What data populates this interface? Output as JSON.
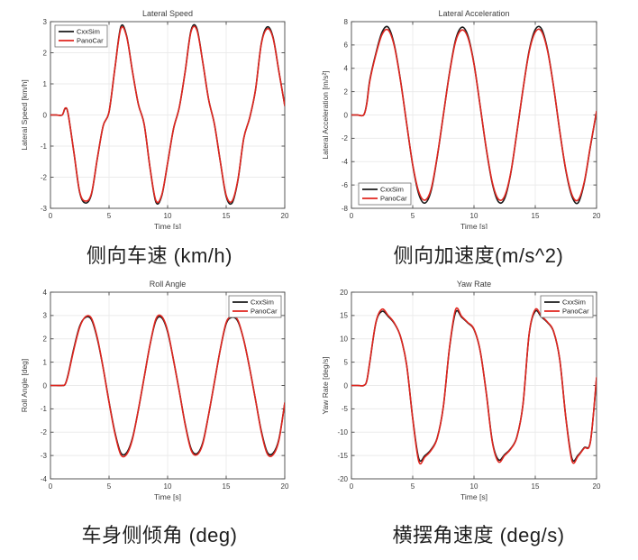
{
  "figure": {
    "background": "#ffffff",
    "legend_labels": [
      "CxxSim",
      "PanoCar"
    ],
    "colors": {
      "cxxsim": "#1a1a1a",
      "panocar": "#e0261f",
      "grid": "#ebebeb",
      "axis": "#4a4a4a",
      "text": "#3d3d3d",
      "legend_border": "#6f6f6f",
      "legend_bg": "#ffffff",
      "caption_text": "#1f1f1f"
    }
  },
  "chart_data": [
    {
      "type": "line",
      "title": "Lateral Speed",
      "xlabel": "Time [s]",
      "ylabel": "Lateral Speed [km/h]",
      "caption": "侧向车速 (km/h)",
      "xlim": [
        0,
        20
      ],
      "ylim": [
        -3,
        3
      ],
      "xticks": [
        0,
        5,
        10,
        15,
        20
      ],
      "yticks": [
        -3,
        -2,
        -1,
        0,
        1,
        2,
        3
      ],
      "grid": true,
      "legend_pos": "top-left",
      "x": [
        0,
        0.5,
        1,
        1.25,
        1.5,
        2,
        2.5,
        3,
        3.5,
        4,
        4.5,
        5,
        5.5,
        6,
        6.5,
        7,
        7.5,
        8,
        8.5,
        9,
        9.5,
        10,
        10.5,
        11,
        11.5,
        12,
        12.5,
        13,
        13.5,
        14,
        14.5,
        15,
        15.5,
        16,
        16.5,
        17,
        17.5,
        18,
        18.5,
        19,
        19.5,
        20
      ],
      "series": [
        {
          "name": "CxxSim",
          "color_key": "cxxsim",
          "values": [
            0,
            0,
            0,
            0.2,
            0.05,
            -1.2,
            -2.5,
            -2.83,
            -2.55,
            -1.4,
            -0.35,
            0.1,
            1.5,
            2.83,
            2.55,
            1.4,
            0.35,
            -0.3,
            -1.7,
            -2.8,
            -2.6,
            -1.55,
            -0.45,
            0.25,
            1.4,
            2.72,
            2.78,
            1.7,
            0.5,
            -0.3,
            -1.5,
            -2.62,
            -2.83,
            -2.1,
            -0.75,
            -0.1,
            0.8,
            2.3,
            2.83,
            2.5,
            1.4,
            0.3
          ]
        },
        {
          "name": "PanoCar",
          "color_key": "panocar",
          "values": [
            0,
            0,
            0,
            0.22,
            0.05,
            -1.2,
            -2.48,
            -2.77,
            -2.52,
            -1.4,
            -0.35,
            0.1,
            1.5,
            2.77,
            2.52,
            1.4,
            0.35,
            -0.3,
            -1.7,
            -2.75,
            -2.57,
            -1.55,
            -0.45,
            0.25,
            1.4,
            2.68,
            2.73,
            1.7,
            0.5,
            -0.3,
            -1.5,
            -2.58,
            -2.77,
            -2.08,
            -0.75,
            -0.1,
            0.8,
            2.28,
            2.77,
            2.47,
            1.4,
            0.3
          ]
        }
      ]
    },
    {
      "type": "line",
      "title": "Lateral Acceleration",
      "xlabel": "Time [s]",
      "ylabel": "Lateral Acceleration [m/s²]",
      "caption": "侧向加速度(m/s^2)",
      "xlim": [
        0,
        20
      ],
      "ylim": [
        -8,
        8
      ],
      "xticks": [
        0,
        5,
        10,
        15,
        20
      ],
      "yticks": [
        -8,
        -6,
        -4,
        -2,
        0,
        2,
        4,
        6,
        8
      ],
      "grid": true,
      "legend_pos": "bottom-left",
      "x": [
        0,
        0.5,
        1,
        1.25,
        1.5,
        2,
        2.5,
        3,
        3.5,
        4,
        4.5,
        5,
        5.5,
        6,
        6.5,
        7,
        7.5,
        8,
        8.5,
        9,
        9.5,
        10,
        10.5,
        11,
        11.5,
        12,
        12.5,
        13,
        13.5,
        14,
        14.5,
        15,
        15.5,
        16,
        16.5,
        17,
        17.5,
        18,
        18.5,
        19,
        19.5,
        20
      ],
      "series": [
        {
          "name": "CxxSim",
          "color_key": "cxxsim",
          "values": [
            0,
            0,
            0,
            1.0,
            3.0,
            5.3,
            7.1,
            7.52,
            6.0,
            3.0,
            -0.7,
            -4.3,
            -6.8,
            -7.55,
            -6.5,
            -3.6,
            0,
            3.6,
            6.45,
            7.52,
            6.8,
            4.4,
            0.8,
            -2.9,
            -5.9,
            -7.45,
            -7.15,
            -5.0,
            -1.5,
            2.2,
            5.5,
            7.32,
            7.4,
            5.6,
            2.4,
            -1.4,
            -4.8,
            -7.0,
            -7.52,
            -5.8,
            -2.7,
            0.3
          ]
        },
        {
          "name": "PanoCar",
          "color_key": "panocar",
          "values": [
            0,
            0,
            0,
            0.95,
            2.9,
            5.2,
            6.9,
            7.28,
            5.9,
            2.95,
            -0.7,
            -4.25,
            -6.6,
            -7.3,
            -6.35,
            -3.55,
            0,
            3.55,
            6.3,
            7.28,
            6.65,
            4.35,
            0.8,
            -2.85,
            -5.8,
            -7.22,
            -6.95,
            -4.95,
            -1.5,
            2.2,
            5.4,
            7.1,
            7.18,
            5.5,
            2.4,
            -1.4,
            -4.72,
            -6.85,
            -7.28,
            -5.72,
            -2.65,
            0.3
          ]
        }
      ]
    },
    {
      "type": "line",
      "title": "Roll Angle",
      "xlabel": "Time [s]",
      "ylabel": "Roll Angle [deg]",
      "caption": "车身侧倾角 (deg)",
      "xlim": [
        0,
        20
      ],
      "ylim": [
        -4,
        4
      ],
      "xticks": [
        0,
        5,
        10,
        15,
        20
      ],
      "yticks": [
        -4,
        -3,
        -2,
        -1,
        0,
        1,
        2,
        3,
        4
      ],
      "grid": true,
      "legend_pos": "top-right",
      "x": [
        0,
        0.5,
        1,
        1.25,
        1.5,
        2,
        2.5,
        3,
        3.5,
        4,
        4.5,
        5,
        5.5,
        6,
        6.5,
        7,
        7.5,
        8,
        8.5,
        9,
        9.5,
        10,
        10.5,
        11,
        11.5,
        12,
        12.5,
        13,
        13.5,
        14,
        14.5,
        15,
        15.5,
        16,
        16.5,
        17,
        17.5,
        18,
        18.5,
        19,
        19.5,
        20
      ],
      "series": [
        {
          "name": "CxxSim",
          "color_key": "cxxsim",
          "values": [
            0,
            0,
            0,
            0.05,
            0.45,
            1.6,
            2.55,
            2.92,
            2.82,
            2.0,
            0.75,
            -0.7,
            -2.0,
            -2.88,
            -2.88,
            -2.25,
            -1.05,
            0.35,
            1.75,
            2.78,
            2.9,
            2.3,
            1.1,
            -0.25,
            -1.65,
            -2.7,
            -2.92,
            -2.45,
            -1.25,
            0.15,
            1.55,
            2.65,
            2.92,
            2.75,
            1.95,
            0.75,
            -0.6,
            -1.95,
            -2.85,
            -2.9,
            -2.3,
            -0.75
          ]
        },
        {
          "name": "PanoCar",
          "color_key": "panocar",
          "values": [
            0,
            0,
            0,
            0.05,
            0.42,
            1.55,
            2.5,
            2.95,
            2.88,
            2.05,
            0.75,
            -0.72,
            -2.05,
            -2.96,
            -2.95,
            -2.3,
            -1.05,
            0.35,
            1.75,
            2.85,
            2.96,
            2.35,
            1.1,
            -0.25,
            -1.68,
            -2.76,
            -2.97,
            -2.5,
            -1.25,
            0.15,
            1.55,
            2.7,
            2.96,
            2.8,
            1.95,
            0.75,
            -0.6,
            -2.0,
            -2.92,
            -2.97,
            -2.35,
            -0.75
          ]
        }
      ]
    },
    {
      "type": "line",
      "title": "Yaw Rate",
      "xlabel": "Time [s]",
      "ylabel": "Yaw Rate [deg/s]",
      "caption": "横摆角速度 (deg/s)",
      "xlim": [
        0,
        20
      ],
      "ylim": [
        -20,
        20
      ],
      "xticks": [
        0,
        5,
        10,
        15,
        20
      ],
      "yticks": [
        -20,
        -15,
        -10,
        -5,
        0,
        5,
        10,
        15,
        20
      ],
      "grid": true,
      "legend_pos": "top-right",
      "x": [
        0,
        0.5,
        1,
        1.25,
        1.5,
        2,
        2.5,
        3,
        3.5,
        4,
        4.5,
        5,
        5.5,
        6,
        6.5,
        7,
        7.5,
        8,
        8.5,
        9,
        9.5,
        10,
        10.5,
        11,
        11.5,
        12,
        12.5,
        13,
        13.5,
        14,
        14.5,
        15,
        15.5,
        16,
        16.5,
        17,
        17.5,
        18,
        18.5,
        19,
        19.5,
        20
      ],
      "series": [
        {
          "name": "CxxSim",
          "color_key": "cxxsim",
          "values": [
            0,
            0,
            0,
            1.0,
            5.0,
            13.5,
            15.9,
            14.8,
            13.3,
            10.5,
            4.5,
            -7.0,
            -15.7,
            -15.0,
            -13.7,
            -11.2,
            -4.5,
            8.0,
            15.7,
            14.6,
            13.4,
            12.0,
            7.5,
            -1.5,
            -12.0,
            -15.9,
            -14.8,
            -13.5,
            -11.0,
            -4.0,
            11.0,
            15.9,
            14.7,
            13.5,
            11.5,
            5.5,
            -7.0,
            -15.7,
            -14.9,
            -13.3,
            -12.0,
            1.5
          ]
        },
        {
          "name": "PanoCar",
          "color_key": "panocar",
          "values": [
            0,
            0,
            0,
            1.0,
            5.1,
            13.6,
            16.35,
            15.0,
            13.4,
            10.5,
            4.5,
            -7.1,
            -16.3,
            -15.3,
            -13.9,
            -11.3,
            -4.5,
            8.1,
            16.3,
            14.8,
            13.5,
            12.1,
            7.5,
            -1.6,
            -12.2,
            -16.35,
            -15.0,
            -13.6,
            -11.1,
            -4.0,
            11.1,
            16.3,
            14.9,
            13.6,
            11.6,
            5.5,
            -7.1,
            -16.2,
            -15.1,
            -13.4,
            -12.1,
            1.7
          ]
        }
      ]
    }
  ]
}
